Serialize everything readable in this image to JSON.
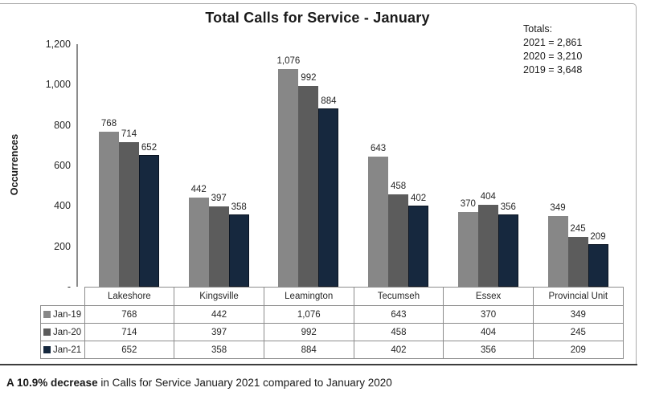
{
  "chart_data": {
    "type": "bar",
    "title": "Total Calls for Service - January",
    "ylabel": "Occurrences",
    "xlabel": "",
    "ylim": [
      0,
      1200
    ],
    "ytick_interval": 200,
    "ytick_labels": [
      "-",
      "200",
      "400",
      "600",
      "800",
      "1,000",
      "1,200"
    ],
    "gridlines": false,
    "legend_position": "data-table-left",
    "categories": [
      "Lakeshore",
      "Kingsville",
      "Leamington",
      "Tecumseh",
      "Essex",
      "Provincial Unit"
    ],
    "series": [
      {
        "name": "Jan-19",
        "color": "#878787",
        "values": [
          768,
          442,
          1076,
          643,
          370,
          349
        ]
      },
      {
        "name": "Jan-20",
        "color": "#5C5C5C",
        "values": [
          714,
          397,
          992,
          458,
          404,
          245
        ]
      },
      {
        "name": "Jan-21",
        "color": "#16283E",
        "border_color": "#0A1422",
        "values": [
          652,
          358,
          884,
          402,
          356,
          209
        ]
      }
    ],
    "totals_annotation": {
      "heading": "Totals:",
      "lines": [
        "2021 = 2,861",
        "2020 = 3,210",
        "2019 = 3,648"
      ]
    }
  },
  "caption": {
    "bold": "A 10.9% decrease",
    "regular": " in Calls for Service January 2021 compared to January 2020"
  }
}
